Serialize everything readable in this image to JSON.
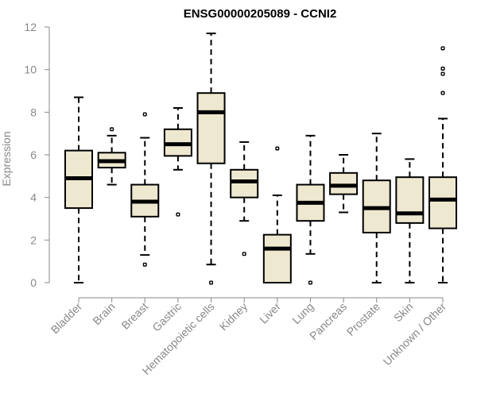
{
  "colors": {
    "box_fill": "#EFE8D0",
    "box_stroke": "#000000",
    "axis": "#888888",
    "title": "#000000"
  },
  "chart_data": {
    "type": "boxplot",
    "title": "ENSG00000205089 - CCNI2",
    "xlabel": "",
    "ylabel": "Expression",
    "ylim": [
      0,
      12
    ],
    "yticks": [
      0,
      2,
      4,
      6,
      8,
      10,
      12
    ],
    "grid": false,
    "categories": [
      "Bladder",
      "Brain",
      "Breast",
      "Gastric",
      "Hematopoietic cells",
      "Kidney",
      "Liver",
      "Lung",
      "Pancreas",
      "Prostate",
      "Skin",
      "Unknown / Other"
    ],
    "boxes": [
      {
        "label": "Bladder",
        "whisker_low": 0.0,
        "q1": 3.5,
        "median": 4.9,
        "q3": 6.2,
        "whisker_high": 8.7,
        "outliers": []
      },
      {
        "label": "Brain",
        "whisker_low": 4.6,
        "q1": 5.4,
        "median": 5.7,
        "q3": 6.1,
        "whisker_high": 6.9,
        "outliers": [
          7.2
        ]
      },
      {
        "label": "Breast",
        "whisker_low": 1.3,
        "q1": 3.1,
        "median": 3.8,
        "q3": 4.6,
        "whisker_high": 6.8,
        "outliers": [
          0.85,
          7.9
        ]
      },
      {
        "label": "Gastric",
        "whisker_low": 5.3,
        "q1": 5.95,
        "median": 6.5,
        "q3": 7.2,
        "whisker_high": 8.2,
        "outliers": [
          3.2
        ]
      },
      {
        "label": "Hematopoietic cells",
        "whisker_low": 0.85,
        "q1": 5.6,
        "median": 8.0,
        "q3": 8.9,
        "whisker_high": 11.7,
        "outliers": [
          0.0
        ]
      },
      {
        "label": "Kidney",
        "whisker_low": 2.9,
        "q1": 4.0,
        "median": 4.75,
        "q3": 5.3,
        "whisker_high": 6.6,
        "outliers": [
          1.35
        ]
      },
      {
        "label": "Liver",
        "whisker_low": 0.0,
        "q1": 0.0,
        "median": 1.6,
        "q3": 2.25,
        "whisker_high": 4.1,
        "outliers": [
          6.3
        ]
      },
      {
        "label": "Lung",
        "whisker_low": 1.35,
        "q1": 2.9,
        "median": 3.75,
        "q3": 4.6,
        "whisker_high": 6.9,
        "outliers": [
          0.0
        ]
      },
      {
        "label": "Pancreas",
        "whisker_low": 3.3,
        "q1": 4.15,
        "median": 4.55,
        "q3": 5.15,
        "whisker_high": 6.0,
        "outliers": []
      },
      {
        "label": "Prostate",
        "whisker_low": 0.0,
        "q1": 2.35,
        "median": 3.5,
        "q3": 4.8,
        "whisker_high": 7.0,
        "outliers": []
      },
      {
        "label": "Skin",
        "whisker_low": 0.0,
        "q1": 2.8,
        "median": 3.25,
        "q3": 4.95,
        "whisker_high": 5.8,
        "outliers": []
      },
      {
        "label": "Unknown / Other",
        "whisker_low": 0.0,
        "q1": 2.55,
        "median": 3.9,
        "q3": 4.95,
        "whisker_high": 7.7,
        "outliers": [
          8.9,
          9.8,
          10.05,
          11.0
        ]
      }
    ]
  }
}
